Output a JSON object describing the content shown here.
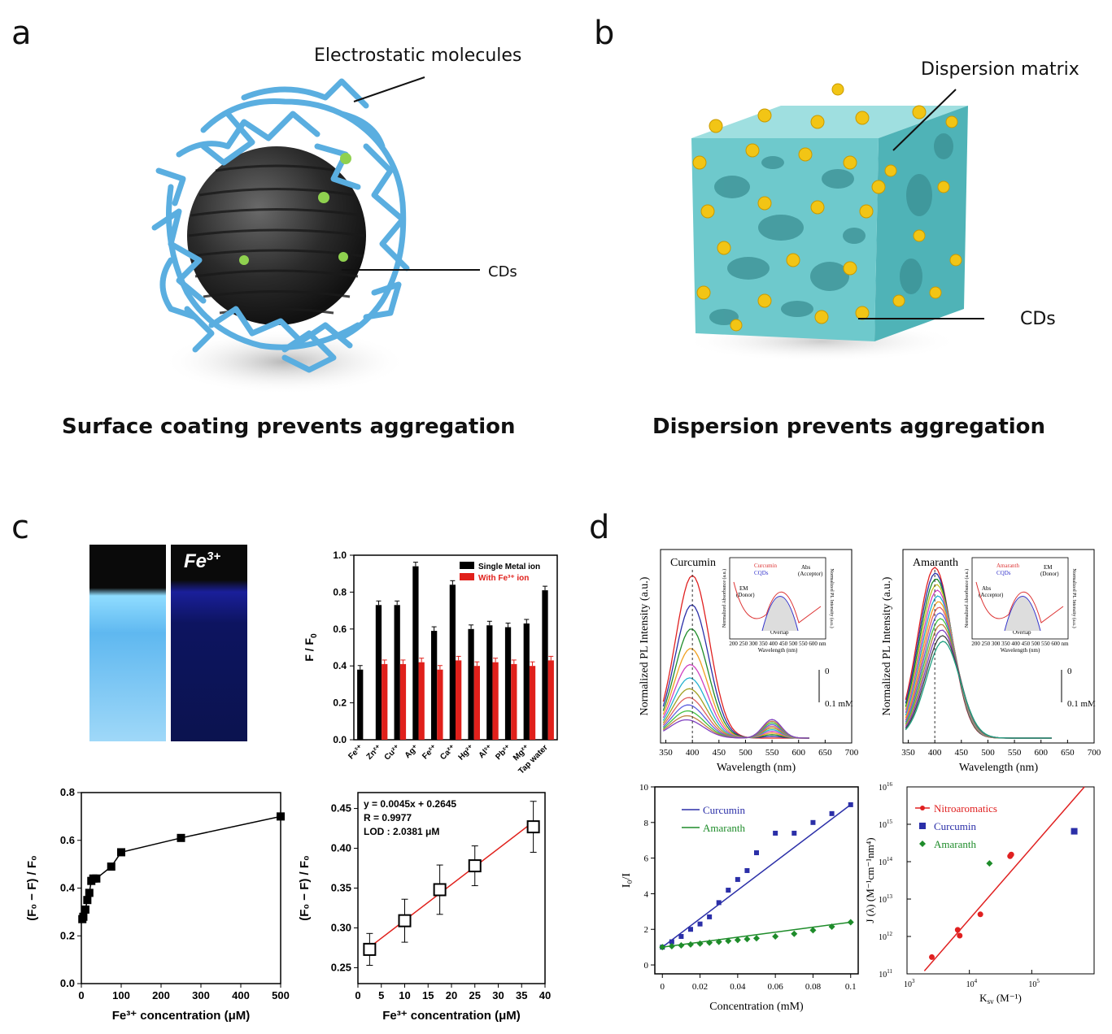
{
  "panels": {
    "a": {
      "label": "a",
      "callout_top": "Electrostatic molecules",
      "callout_right": "CDs",
      "caption": "Surface coating prevents aggregation"
    },
    "b": {
      "label": "b",
      "callout_top": "Dispersion matrix",
      "callout_right": "CDs",
      "caption": "Dispersion prevents aggregation"
    },
    "c": {
      "label": "c",
      "photo_label": "Fe",
      "photo_label_sup": "3+"
    },
    "d": {
      "label": "d"
    }
  },
  "colors": {
    "polymer_blue": "#5aaee0",
    "cd_black": "#2a2a2a",
    "cd_green": "#8fd14f",
    "matrix_teal": "#6ec9cc",
    "cd_yellow": "#f2c515",
    "bar_black": "#000000",
    "bar_red": "#e0201b",
    "curcumin_blue": "#2b2fa8",
    "amaranth_green": "#1e8c2a",
    "nitro_red": "#e02020"
  },
  "chart_data": [
    {
      "id": "c-bar",
      "type": "bar",
      "ylabel": "F / F",
      "ylabel_sub": "0",
      "ylim": [
        0,
        1.0
      ],
      "yticks": [
        "0.0",
        "0.2",
        "0.4",
        "0.6",
        "0.8",
        "1.0"
      ],
      "categories": [
        "Fe³⁺",
        "Zn²⁺",
        "Cu²⁺",
        "Ag⁺",
        "Fe²⁺",
        "Ca²⁺",
        "Hg²⁺",
        "Al³⁺",
        "Pb²⁺",
        "Mg²⁺",
        "Tap water"
      ],
      "series": [
        {
          "name": "Single Metal ion",
          "values": [
            0.38,
            0.73,
            0.73,
            0.94,
            0.59,
            0.84,
            0.6,
            0.62,
            0.61,
            0.63,
            0.81
          ]
        },
        {
          "name": "With Fe³⁺ ion",
          "values": [
            null,
            0.41,
            0.41,
            0.42,
            0.38,
            0.43,
            0.4,
            0.42,
            0.41,
            0.4,
            0.43
          ]
        }
      ],
      "legend": "top-right"
    },
    {
      "id": "c-curve",
      "type": "line",
      "xlabel": "Fe³⁺ concentration (μM)",
      "ylabel": "(F₀ − F) / F₀",
      "xlim": [
        0,
        500
      ],
      "ylim": [
        0,
        0.8
      ],
      "xticks": [
        "0",
        "100",
        "200",
        "300",
        "400",
        "500"
      ],
      "yticks": [
        "0.0",
        "0.2",
        "0.4",
        "0.6",
        "0.8"
      ],
      "x": [
        2.5,
        5,
        10,
        15,
        20,
        25,
        30,
        37.5,
        75,
        100,
        250,
        500
      ],
      "y": [
        0.27,
        0.28,
        0.31,
        0.35,
        0.38,
        0.43,
        0.44,
        0.44,
        0.49,
        0.55,
        0.61,
        0.7
      ]
    },
    {
      "id": "c-linear",
      "type": "scatter",
      "xlabel": "Fe³⁺ concentration (μM)",
      "ylabel": "(F₀ − F) / F₀",
      "xlim": [
        0,
        40
      ],
      "ylim": [
        0.23,
        0.47
      ],
      "xticks": [
        "0",
        "5",
        "10",
        "15",
        "20",
        "25",
        "30",
        "35",
        "40"
      ],
      "yticks": [
        "0.25",
        "0.30",
        "0.35",
        "0.40",
        "0.45"
      ],
      "x": [
        2.5,
        10,
        17.5,
        25,
        37.5
      ],
      "y": [
        0.273,
        0.309,
        0.348,
        0.378,
        0.427
      ],
      "err": [
        0.02,
        0.027,
        0.031,
        0.025,
        0.032
      ],
      "annotations": [
        "y = 0.0045x + 0.2645",
        "R = 0.9977",
        "LOD : 2.0381 μM"
      ]
    },
    {
      "id": "d-curcumin",
      "type": "line",
      "title": "Curcumin",
      "xlabel": "Wavelength (nm)",
      "ylabel": "Normalized PL Intensity (a.u.)",
      "xlim": [
        340,
        700
      ],
      "xticks": [
        "350",
        "400",
        "450",
        "500",
        "550",
        "600",
        "650",
        "700"
      ],
      "annotations": [
        "0",
        "0.1 mM"
      ],
      "inset": {
        "legend": [
          "Curcumin",
          "CQDs"
        ],
        "labels": [
          "Abs",
          "(Acceptor)",
          "EM",
          "(Donor)",
          "Overlap"
        ],
        "xlabel": "Wavelength (nm)",
        "ylabel_left": "Normalized Absorbance (a.u.)",
        "ylabel_right": "Normalized PL Intensity (a.u.)",
        "xticks": "200 250 300 350 400 450 500 550 600 nm"
      }
    },
    {
      "id": "d-amaranth",
      "type": "line",
      "title": "Amaranth",
      "xlabel": "Wavelength (nm)",
      "ylabel": "Normalized PL Intensity (a.u.)",
      "xlim": [
        340,
        700
      ],
      "xticks": [
        "350",
        "400",
        "450",
        "500",
        "550",
        "600",
        "650",
        "700"
      ],
      "annotations": [
        "0",
        "0.1 mM"
      ],
      "inset": {
        "legend": [
          "Amaranth",
          "CQDs"
        ],
        "labels": [
          "EM",
          "(Donor)",
          "Abs",
          "(Acceptor)",
          "Overlap"
        ],
        "xlabel": "Wavelength (nm)",
        "ylabel_left": "Normalized Absorbance (a.u.)",
        "ylabel_right": "Normalized PL Intensity (a.u.)",
        "xticks": "200 250 300 350 400 450 500 550 600 nm"
      }
    },
    {
      "id": "d-sternvolmer",
      "type": "scatter",
      "xlabel": "Concentration (mM)",
      "ylabel": "I₀/I",
      "xlim": [
        -0.004,
        0.104
      ],
      "ylim": [
        -0.5,
        10
      ],
      "xticks": [
        "0",
        "0.02",
        "0.04",
        "0.06",
        "0.08",
        "0.1"
      ],
      "yticks": [
        "0",
        "2",
        "4",
        "6",
        "8",
        "10"
      ],
      "series": [
        {
          "name": "Curcumin",
          "x": [
            0,
            0.005,
            0.01,
            0.015,
            0.02,
            0.025,
            0.03,
            0.035,
            0.04,
            0.045,
            0.05,
            0.06,
            0.07,
            0.08,
            0.09,
            0.1
          ],
          "y": [
            1.0,
            1.3,
            1.6,
            2.0,
            2.3,
            2.7,
            3.5,
            4.2,
            4.8,
            5.3,
            6.3,
            7.4,
            7.4,
            8.0,
            8.5,
            9.0
          ]
        },
        {
          "name": "Amaranth",
          "x": [
            0,
            0.005,
            0.01,
            0.015,
            0.02,
            0.025,
            0.03,
            0.035,
            0.04,
            0.045,
            0.05,
            0.06,
            0.07,
            0.08,
            0.09,
            0.1
          ],
          "y": [
            1.0,
            1.05,
            1.1,
            1.15,
            1.2,
            1.25,
            1.3,
            1.35,
            1.4,
            1.45,
            1.5,
            1.6,
            1.75,
            1.95,
            2.15,
            2.4
          ]
        }
      ],
      "legend": "top-left"
    },
    {
      "id": "d-overlap",
      "type": "scatter",
      "xlabel": "K (M⁻¹)",
      "xlabel_sub": "sv",
      "ylabel": "J (λ) (M⁻¹cm⁻¹nm⁴)",
      "xscale": "log",
      "yscale": "log",
      "xlim": [
        1000,
        1000000
      ],
      "ylim": [
        100000000000.0,
        1e+16
      ],
      "xticks_exp": [
        "3",
        "4",
        "5"
      ],
      "yticks_exp": [
        "11",
        "12",
        "13",
        "14",
        "15",
        "16"
      ],
      "series": [
        {
          "name": "Nitroaromatics",
          "x": [
            2500,
            6500,
            7000,
            15000,
            45000,
            47000
          ],
          "y": [
            280000000000.0,
            1500000000000.0,
            1050000000000.0,
            3900000000000.0,
            140000000000000.0,
            155000000000000.0
          ]
        },
        {
          "name": "Curcumin",
          "x": [
            480000
          ],
          "y": [
            650000000000000.0
          ]
        },
        {
          "name": "Amaranth",
          "x": [
            21000
          ],
          "y": [
            90000000000000.0
          ]
        }
      ],
      "legend": "top-left"
    }
  ]
}
